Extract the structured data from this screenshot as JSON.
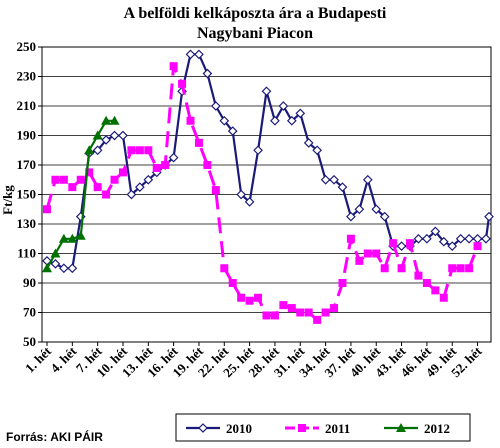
{
  "chart_data": {
    "type": "line",
    "title": "A belföldi kelkáposzta ára a Budapesti",
    "subtitle": "Nagybani Piacon",
    "ylabel": "Ft/kg",
    "xlabel": "",
    "ylim": [
      50,
      250
    ],
    "yticks": [
      50,
      70,
      90,
      110,
      130,
      150,
      170,
      190,
      210,
      230,
      250
    ],
    "xlim": [
      1,
      53
    ],
    "categories": [
      "1. hét",
      "4. hét",
      "7. hét",
      "10. hét",
      "13. hét",
      "16. hét",
      "19. hét",
      "22. hét",
      "25. hét",
      "28. hét",
      "31. hét",
      "34. hét",
      "37. hét",
      "40. hét",
      "43. hét",
      "46. hét",
      "49. hét",
      "52. hét"
    ],
    "category_weeks": [
      1,
      4,
      7,
      10,
      13,
      16,
      19,
      22,
      25,
      28,
      31,
      34,
      37,
      40,
      43,
      46,
      49,
      52
    ],
    "grid": true,
    "legend_position": "bottom",
    "series": [
      {
        "name": "2010",
        "color": "#1a1a7a",
        "marker": "diamond-open",
        "dash": "solid",
        "points": [
          [
            1,
            105
          ],
          [
            2,
            103
          ],
          [
            3,
            100
          ],
          [
            4,
            100
          ],
          [
            5,
            135
          ],
          [
            6,
            178
          ],
          [
            7,
            180
          ],
          [
            8,
            187
          ],
          [
            9,
            190
          ],
          [
            10,
            190
          ],
          [
            11,
            150
          ],
          [
            12,
            155
          ],
          [
            13,
            160
          ],
          [
            14,
            165
          ],
          [
            15,
            170
          ],
          [
            16,
            175
          ],
          [
            17,
            220
          ],
          [
            18,
            245
          ],
          [
            19,
            245
          ],
          [
            20,
            232
          ],
          [
            21,
            210
          ],
          [
            22,
            200
          ],
          [
            23,
            193
          ],
          [
            24,
            150
          ],
          [
            25,
            145
          ],
          [
            26,
            180
          ],
          [
            27,
            220
          ],
          [
            28,
            200
          ],
          [
            29,
            210
          ],
          [
            30,
            200
          ],
          [
            31,
            205
          ],
          [
            32,
            185
          ],
          [
            33,
            180
          ],
          [
            34,
            160
          ],
          [
            35,
            160
          ],
          [
            36,
            155
          ],
          [
            37,
            135
          ],
          [
            38,
            140
          ],
          [
            39,
            160
          ],
          [
            40,
            140
          ],
          [
            41,
            135
          ],
          [
            42,
            115
          ],
          [
            43,
            115
          ],
          [
            44,
            115
          ],
          [
            45,
            120
          ],
          [
            46,
            120
          ],
          [
            47,
            125
          ],
          [
            48,
            118
          ],
          [
            49,
            115
          ],
          [
            50,
            120
          ],
          [
            51,
            120
          ],
          [
            52,
            120
          ],
          [
            53,
            120
          ],
          [
            54,
            135
          ]
        ]
      },
      {
        "name": "2011",
        "color": "#ff00ff",
        "marker": "square",
        "dash": "dashed",
        "points": [
          [
            1,
            140
          ],
          [
            2,
            160
          ],
          [
            3,
            160
          ],
          [
            4,
            155
          ],
          [
            5,
            160
          ],
          [
            6,
            165
          ],
          [
            7,
            155
          ],
          [
            8,
            150
          ],
          [
            9,
            160
          ],
          [
            10,
            165
          ],
          [
            11,
            180
          ],
          [
            12,
            180
          ],
          [
            13,
            180
          ],
          [
            14,
            168
          ],
          [
            15,
            170
          ],
          [
            16,
            237
          ],
          [
            17,
            225
          ],
          [
            18,
            200
          ],
          [
            19,
            185
          ],
          [
            20,
            170
          ],
          [
            21,
            153
          ],
          [
            22,
            100
          ],
          [
            23,
            90
          ],
          [
            24,
            80
          ],
          [
            25,
            78
          ],
          [
            26,
            80
          ],
          [
            27,
            68
          ],
          [
            28,
            68
          ],
          [
            29,
            75
          ],
          [
            30,
            73
          ],
          [
            31,
            70
          ],
          [
            32,
            70
          ],
          [
            33,
            65
          ],
          [
            34,
            70
          ],
          [
            35,
            73
          ],
          [
            36,
            90
          ],
          [
            37,
            120
          ],
          [
            38,
            105
          ],
          [
            39,
            110
          ],
          [
            40,
            110
          ],
          [
            41,
            100
          ],
          [
            42,
            117
          ],
          [
            43,
            100
          ],
          [
            44,
            117
          ],
          [
            45,
            95
          ],
          [
            46,
            90
          ],
          [
            47,
            85
          ],
          [
            48,
            80
          ],
          [
            49,
            100
          ],
          [
            50,
            100
          ],
          [
            51,
            100
          ],
          [
            52,
            115
          ]
        ]
      },
      {
        "name": "2012",
        "color": "#007000",
        "marker": "triangle",
        "dash": "solid",
        "points": [
          [
            1,
            100
          ],
          [
            2,
            110
          ],
          [
            3,
            120
          ],
          [
            4,
            120
          ],
          [
            5,
            122
          ],
          [
            6,
            180
          ],
          [
            7,
            190
          ],
          [
            8,
            200
          ],
          [
            9,
            200
          ]
        ]
      }
    ]
  },
  "source_note": "Forrás: AKI PÁIR"
}
